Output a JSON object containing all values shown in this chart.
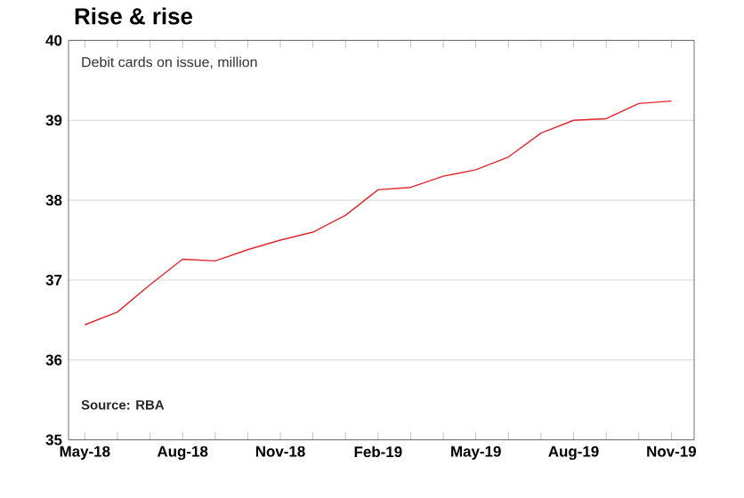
{
  "chart_data": {
    "type": "line",
    "title": "Rise & rise",
    "annotations": [
      "Debit cards on issue, million",
      "Source: RBA"
    ],
    "categories": [
      "May-18",
      null,
      null,
      "Aug-18",
      null,
      null,
      "Nov-18",
      null,
      null,
      "Feb-19",
      null,
      null,
      "May-19",
      null,
      null,
      "Aug-19",
      null,
      null,
      "Nov-19"
    ],
    "values": [
      36.44,
      36.6,
      36.94,
      37.26,
      37.24,
      37.38,
      37.5,
      37.6,
      37.81,
      38.13,
      38.16,
      38.3,
      38.38,
      38.54,
      38.84,
      39.0,
      39.02,
      39.21,
      39.24
    ],
    "color": "#e3262d",
    "ylim": [
      35,
      40
    ],
    "yticks": [
      35,
      36,
      37,
      38,
      39,
      40
    ],
    "grid": "y",
    "marker": "none",
    "line_style": "solid"
  }
}
